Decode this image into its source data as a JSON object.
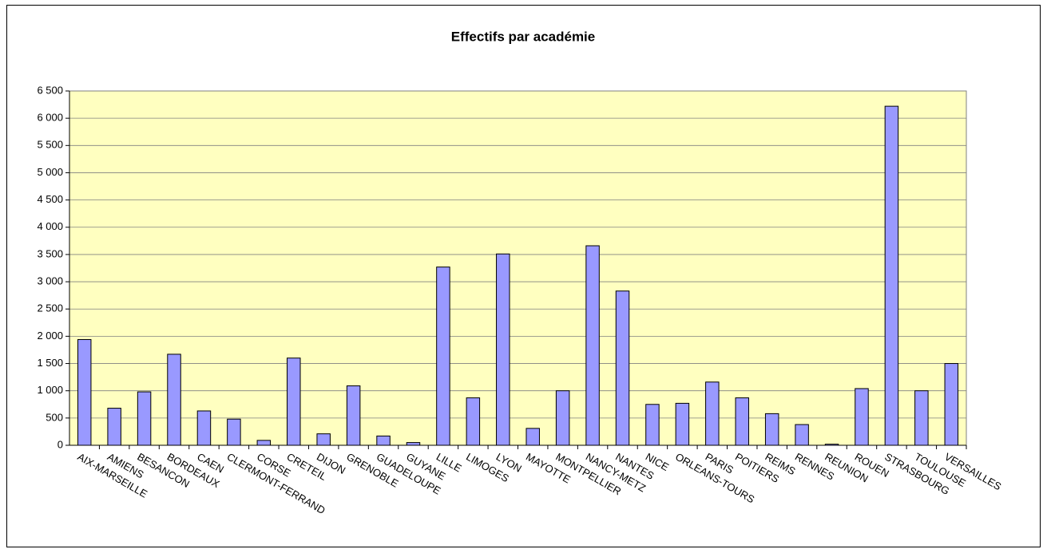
{
  "chart_data": {
    "type": "bar",
    "title": "Effectifs par académie",
    "categories": [
      "AIX-MARSEILLE",
      "AMIENS",
      "BESANCON",
      "BORDEAUX",
      "CAEN",
      "CLERMONT-FERRAND",
      "CORSE",
      "CRETEIL",
      "DIJON",
      "GRENOBLE",
      "GUADELOUPE",
      "GUYANE",
      "LILLE",
      "LIMOGES",
      "LYON",
      "MAYOTTE",
      "MONTPELLIER",
      "NANCY-METZ",
      "NANTES",
      "NICE",
      "ORLEANS-TOURS",
      "PARIS",
      "POITIERS",
      "REIMS",
      "RENNES",
      "REUNION",
      "ROUEN",
      "STRASBOURG",
      "TOULOUSE",
      "VERSAILLES"
    ],
    "values": [
      1940,
      680,
      980,
      1670,
      630,
      480,
      90,
      1600,
      210,
      1090,
      170,
      50,
      3270,
      870,
      3510,
      310,
      1000,
      3660,
      2830,
      750,
      770,
      1160,
      870,
      580,
      380,
      20,
      1040,
      6220,
      1000,
      1500
    ],
    "color": "#9999ff",
    "ylim": [
      0,
      6500
    ],
    "yticks": [
      0,
      500,
      {
        "value": 1000,
        "label": "1 000"
      },
      {
        "value": 1500,
        "label": "1 500"
      },
      {
        "value": 2000,
        "label": "2 000"
      },
      {
        "value": 2500,
        "label": "2 500"
      },
      {
        "value": 3000,
        "label": "3 000"
      },
      {
        "value": 3500,
        "label": "3 500"
      },
      {
        "value": 4000,
        "label": "4 000"
      },
      {
        "value": 4500,
        "label": "4 500"
      },
      {
        "value": 5000,
        "label": "5 000"
      },
      {
        "value": 5500,
        "label": "5 500"
      },
      {
        "value": 6000,
        "label": "6 000"
      },
      {
        "value": 6500,
        "label": "6 500"
      }
    ],
    "grid": true
  }
}
